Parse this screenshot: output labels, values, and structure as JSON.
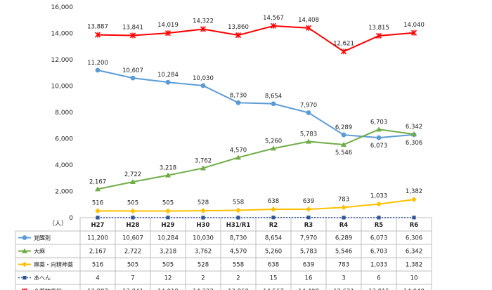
{
  "chart_data": {
    "type": "line",
    "unit_label": "（人）",
    "categories": [
      "H27",
      "H28",
      "H29",
      "H30",
      "H31/R1",
      "R2",
      "R3",
      "R4",
      "R5",
      "R6"
    ],
    "ylim": [
      0,
      16000
    ],
    "yticks": [
      "0",
      "2,000",
      "4,000",
      "6,000",
      "8,000",
      "10,000",
      "12,000",
      "14,000",
      "16,000"
    ],
    "grid": false,
    "legend": "data-table-left",
    "series": [
      {
        "name": "覚醒剤",
        "color": "#5b9bd5",
        "marker": "circle",
        "values": [
          11200,
          10607,
          10284,
          10030,
          8730,
          8654,
          7970,
          6289,
          6073,
          6306
        ],
        "labels": [
          "11,200",
          "10,607",
          "10,284",
          "10,030",
          "8,730",
          "8,654",
          "7,970",
          "6,289",
          "6,073",
          "6,306"
        ]
      },
      {
        "name": "大麻",
        "color": "#70ad47",
        "marker": "triangle",
        "values": [
          2167,
          2722,
          3218,
          3762,
          4570,
          5260,
          5783,
          5546,
          6703,
          6342
        ],
        "labels": [
          "2,167",
          "2,722",
          "3,218",
          "3,762",
          "4,570",
          "5,260",
          "5,783",
          "5,546",
          "6,703",
          "6,342"
        ]
      },
      {
        "name": "麻薬・向精神薬",
        "color": "#ffc000",
        "marker": "diamond",
        "values": [
          516,
          505,
          505,
          528,
          558,
          638,
          639,
          783,
          1033,
          1382
        ],
        "labels": [
          "516",
          "505",
          "505",
          "528",
          "558",
          "638",
          "639",
          "783",
          "1,033",
          "1,382"
        ]
      },
      {
        "name": "あへん",
        "color": "#2f5597",
        "marker": "square",
        "dashed": true,
        "values": [
          4,
          7,
          12,
          2,
          2,
          15,
          16,
          3,
          6,
          10
        ],
        "labels": [
          "4",
          "7",
          "12",
          "2",
          "2",
          "15",
          "16",
          "3",
          "6",
          "10"
        ]
      },
      {
        "name": "全薬物事犯",
        "color": "#ff0000",
        "marker": "star",
        "values": [
          13887,
          13841,
          14019,
          14322,
          13860,
          14567,
          14408,
          12621,
          13815,
          14040
        ],
        "labels": [
          "13,887",
          "13,841",
          "14,019",
          "14,322",
          "13,860",
          "14,567",
          "14,408",
          "12,621",
          "13,815",
          "14,040"
        ]
      }
    ]
  }
}
